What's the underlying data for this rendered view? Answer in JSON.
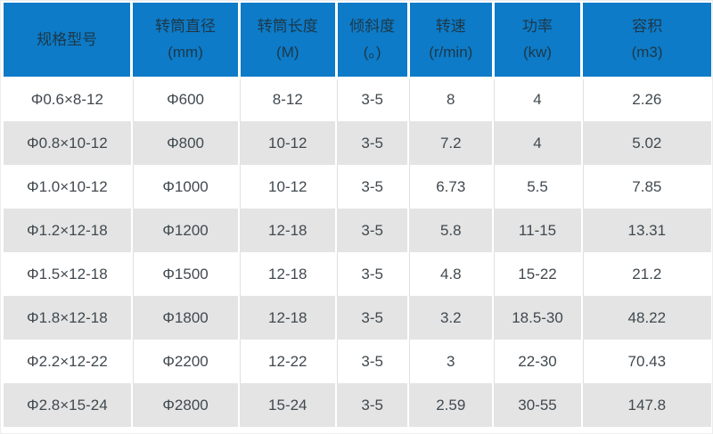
{
  "chart_data": {
    "type": "table",
    "columns": [
      {
        "label": "规格型号",
        "unit": ""
      },
      {
        "label": "转筒直径",
        "unit": "(mm)"
      },
      {
        "label": "转筒长度",
        "unit": "(M)"
      },
      {
        "label": "倾斜度",
        "unit": "(。)"
      },
      {
        "label": "转速",
        "unit": "(r/min)"
      },
      {
        "label": "功率",
        "unit": "(kw)"
      },
      {
        "label": "容积",
        "unit": "(m3)"
      }
    ],
    "rows": [
      [
        "Φ0.6×8-12",
        "Φ600",
        "8-12",
        "3-5",
        "8",
        "4",
        "2.26"
      ],
      [
        "Φ0.8×10-12",
        "Φ800",
        "10-12",
        "3-5",
        "7.2",
        "4",
        "5.02"
      ],
      [
        "Φ1.0×10-12",
        "Φ1000",
        "10-12",
        "3-5",
        "6.73",
        "5.5",
        "7.85"
      ],
      [
        "Φ1.2×12-18",
        "Φ1200",
        "12-18",
        "3-5",
        "5.8",
        "11-15",
        "13.31"
      ],
      [
        "Φ1.5×12-18",
        "Φ1500",
        "12-18",
        "3-5",
        "4.8",
        "15-22",
        "21.2"
      ],
      [
        "Φ1.8×12-18",
        "Φ1800",
        "12-18",
        "3-5",
        "3.2",
        "18.5-30",
        "48.22"
      ],
      [
        "Φ2.2×12-22",
        "Φ2200",
        "12-22",
        "3-5",
        "3",
        "22-30",
        "70.43"
      ],
      [
        "Φ2.8×15-24",
        "Φ2800",
        "15-24",
        "3-5",
        "2.59",
        "30-55",
        "147.8"
      ]
    ]
  },
  "colors": {
    "header_bg": "#0d7bc8",
    "header_text": "#1d3848",
    "body_text": "#40494f",
    "row_alt_bg": "#e4e4e4",
    "separator": "#e0e0e0"
  }
}
